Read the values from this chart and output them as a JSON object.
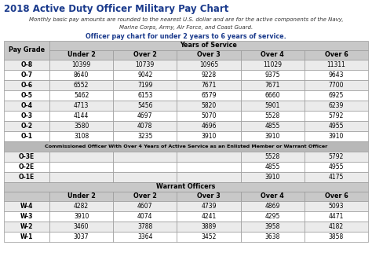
{
  "title": "2018 Active Duty Officer Military Pay Chart",
  "subtitle_line1": "Monthly basic pay amounts are rounded to the nearest U.S. dollar and are for the active components of the Navy,",
  "subtitle_line2": "Marine Corps, Army, Air Force, and Coast Guard.",
  "section_header": "Officer pay chart for under 2 years to 6 years of service.",
  "years_of_service_label": "Years of Service",
  "col_headers": [
    "Pay Grade",
    "Under 2",
    "Over 2",
    "Over 3",
    "Over 4",
    "Over 6"
  ],
  "officer_rows": [
    [
      "O-8",
      "10399",
      "10739",
      "10965",
      "11029",
      "11311"
    ],
    [
      "O-7",
      "8640",
      "9042",
      "9228",
      "9375",
      "9643"
    ],
    [
      "O-6",
      "6552",
      "7199",
      "7671",
      "7671",
      "7700"
    ],
    [
      "O-5",
      "5462",
      "6153",
      "6579",
      "6660",
      "6925"
    ],
    [
      "O-4",
      "4713",
      "5456",
      "5820",
      "5901",
      "6239"
    ],
    [
      "O-3",
      "4144",
      "4697",
      "5070",
      "5528",
      "5792"
    ],
    [
      "O-2",
      "3580",
      "4078",
      "4696",
      "4855",
      "4955"
    ],
    [
      "O-1",
      "3108",
      "3235",
      "3910",
      "3910",
      "3910"
    ]
  ],
  "commissioned_header": "Commissioned Officer With Over 4 Years of Active Service as an Enlisted Member or Warrant Officer",
  "commissioned_rows": [
    [
      "O-3E",
      "",
      "",
      "",
      "5528",
      "5792"
    ],
    [
      "O-2E",
      "",
      "",
      "",
      "4855",
      "4955"
    ],
    [
      "O-1E",
      "",
      "",
      "",
      "3910",
      "4175"
    ]
  ],
  "warrant_header": "Warrant Officers",
  "warrant_col_headers": [
    "",
    "Under 2",
    "Over 2",
    "Over 3",
    "Over 4",
    "Over 6"
  ],
  "warrant_rows": [
    [
      "W-4",
      "4282",
      "4607",
      "4739",
      "4869",
      "5093"
    ],
    [
      "W-3",
      "3910",
      "4074",
      "4241",
      "4295",
      "4471"
    ],
    [
      "W-2",
      "3460",
      "3788",
      "3889",
      "3958",
      "4182"
    ],
    [
      "W-1",
      "3037",
      "3364",
      "3452",
      "3638",
      "3858"
    ]
  ],
  "title_color": "#1a3a8c",
  "section_header_color": "#1a3a8c",
  "header_bg": "#c8c8c8",
  "row_bg_light": "#ebebeb",
  "row_bg_white": "#ffffff",
  "special_header_bg": "#b8b8b8",
  "warrant_header_bg": "#c8c8c8",
  "border_color": "#999999",
  "fig_w": 4.74,
  "fig_h": 3.45,
  "dpi": 100
}
